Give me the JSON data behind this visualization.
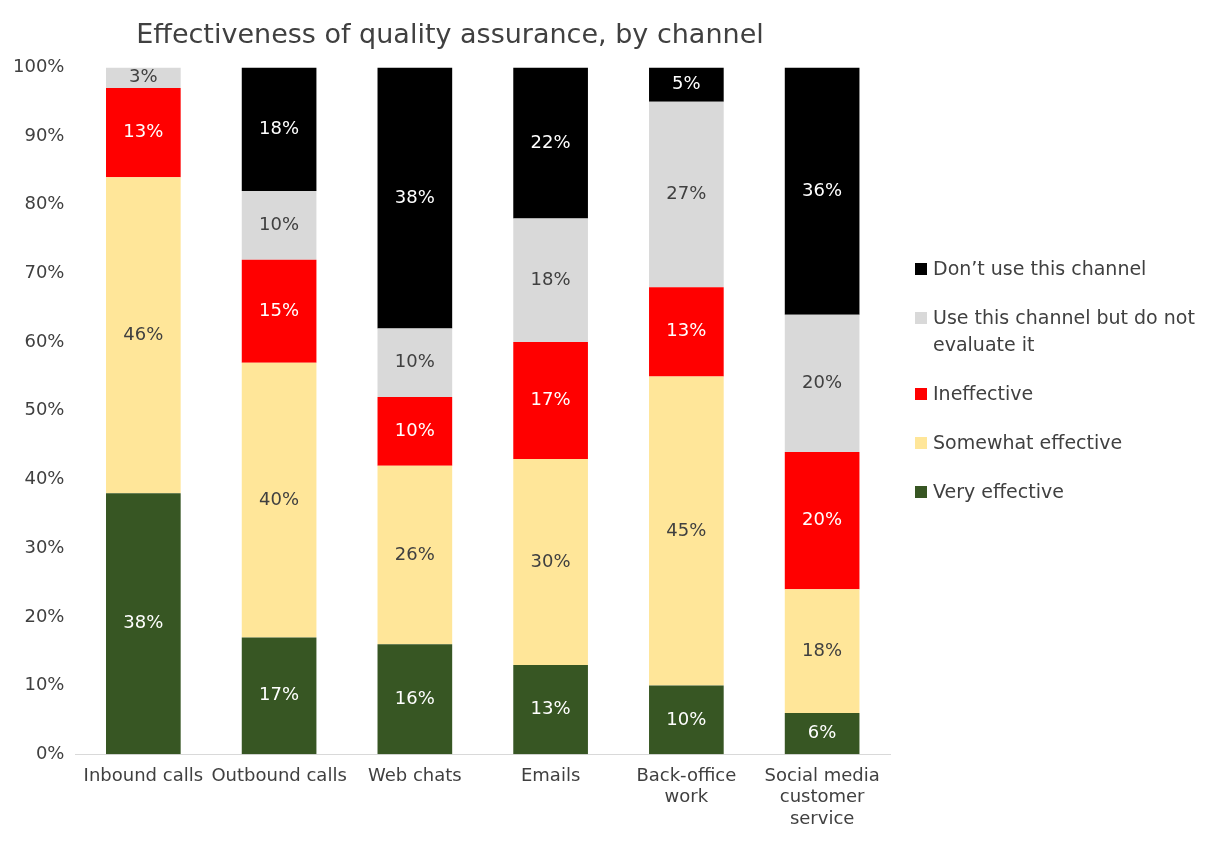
{
  "chart_data": {
    "type": "bar",
    "title": "Effectiveness of quality assurance, by channel",
    "stacked": true,
    "legend": "right",
    "grid": false,
    "categories": [
      "Inbound calls",
      "Outbound calls",
      "Web chats",
      "Emails",
      "Back-office work",
      "Social media customer service"
    ],
    "ylim": [
      0,
      100
    ],
    "yticks": [
      {
        "value": 0,
        "label": "0%"
      },
      {
        "value": 10,
        "label": "10%"
      },
      {
        "value": 20,
        "label": "20%"
      },
      {
        "value": 30,
        "label": "30%"
      },
      {
        "value": 40,
        "label": "40%"
      },
      {
        "value": 50,
        "label": "50%"
      },
      {
        "value": 60,
        "label": "60%"
      },
      {
        "value": 70,
        "label": "70%"
      },
      {
        "value": 80,
        "label": "80%"
      },
      {
        "value": 90,
        "label": "90%"
      },
      {
        "value": 100,
        "label": "100%"
      }
    ],
    "series": [
      {
        "name": "Very effective",
        "color": "#375623",
        "values": [
          38,
          17,
          16,
          13,
          10,
          6
        ],
        "value_labels": [
          "38%",
          "17%",
          "16%",
          "13%",
          "10%",
          "6%"
        ]
      },
      {
        "name": "Somewhat effective",
        "color": "#ffe699",
        "values": [
          46,
          40,
          26,
          30,
          45,
          18
        ],
        "value_labels": [
          "46%",
          "40%",
          "26%",
          "30%",
          "45%",
          "18%"
        ]
      },
      {
        "name": "Ineffective",
        "color": "#ff0000",
        "values": [
          13,
          15,
          10,
          17,
          13,
          20
        ],
        "value_labels": [
          "13%",
          "15%",
          "10%",
          "17%",
          "13%",
          "20%"
        ]
      },
      {
        "name": "Use this channel but do not evaluate it",
        "color": "#d9d9d9",
        "values": [
          3,
          10,
          10,
          18,
          27,
          20
        ],
        "value_labels": [
          "3%",
          "10%",
          "10%",
          "18%",
          "27%",
          "20%"
        ]
      },
      {
        "name": "Don’t use this channel",
        "color": "#000000",
        "values": [
          null,
          18,
          38,
          22,
          5,
          36
        ],
        "value_labels": [
          null,
          "18%",
          "38%",
          "22%",
          "5%",
          "36%"
        ]
      }
    ]
  }
}
